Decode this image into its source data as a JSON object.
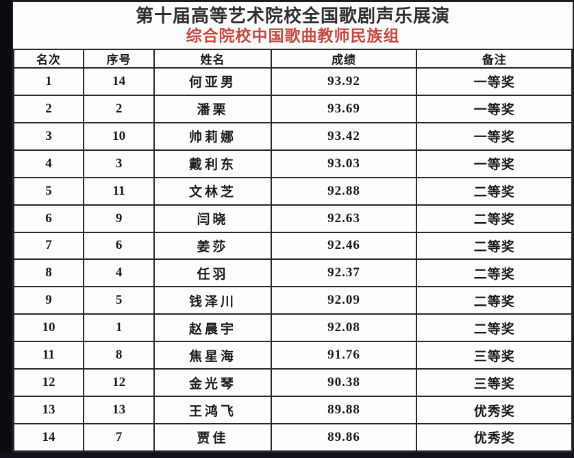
{
  "header": {
    "title": "第十届高等艺术院校全国歌剧声乐展演",
    "subtitle": "综合院校中国歌曲教师民族组",
    "subtitle_color": "#c7483f",
    "title_color": "#2e2e30"
  },
  "table": {
    "columns": [
      "名次",
      "序号",
      "姓名",
      "成绩",
      "备注"
    ],
    "rows": [
      {
        "rank": "1",
        "number": "14",
        "name": "何亚男",
        "score": "93.92",
        "award": "一等奖"
      },
      {
        "rank": "2",
        "number": "2",
        "name": "潘栗",
        "score": "93.69",
        "award": "一等奖"
      },
      {
        "rank": "3",
        "number": "10",
        "name": "帅莉娜",
        "score": "93.42",
        "award": "一等奖"
      },
      {
        "rank": "4",
        "number": "3",
        "name": "戴利东",
        "score": "93.03",
        "award": "一等奖"
      },
      {
        "rank": "5",
        "number": "11",
        "name": "文林芝",
        "score": "92.88",
        "award": "二等奖"
      },
      {
        "rank": "6",
        "number": "9",
        "name": "闫晓",
        "score": "92.63",
        "award": "二等奖"
      },
      {
        "rank": "7",
        "number": "6",
        "name": "姜莎",
        "score": "92.46",
        "award": "二等奖"
      },
      {
        "rank": "8",
        "number": "4",
        "name": "任羽",
        "score": "92.37",
        "award": "二等奖"
      },
      {
        "rank": "9",
        "number": "5",
        "name": "钱泽川",
        "score": "92.09",
        "award": "二等奖"
      },
      {
        "rank": "10",
        "number": "1",
        "name": "赵晨宇",
        "score": "92.08",
        "award": "二等奖"
      },
      {
        "rank": "11",
        "number": "8",
        "name": "焦星海",
        "score": "91.76",
        "award": "三等奖"
      },
      {
        "rank": "12",
        "number": "12",
        "name": "金光琴",
        "score": "90.38",
        "award": "三等奖"
      },
      {
        "rank": "13",
        "number": "13",
        "name": "王鸿飞",
        "score": "89.88",
        "award": "优秀奖"
      },
      {
        "rank": "14",
        "number": "7",
        "name": "贾佳",
        "score": "89.86",
        "award": "优秀奖"
      }
    ]
  }
}
